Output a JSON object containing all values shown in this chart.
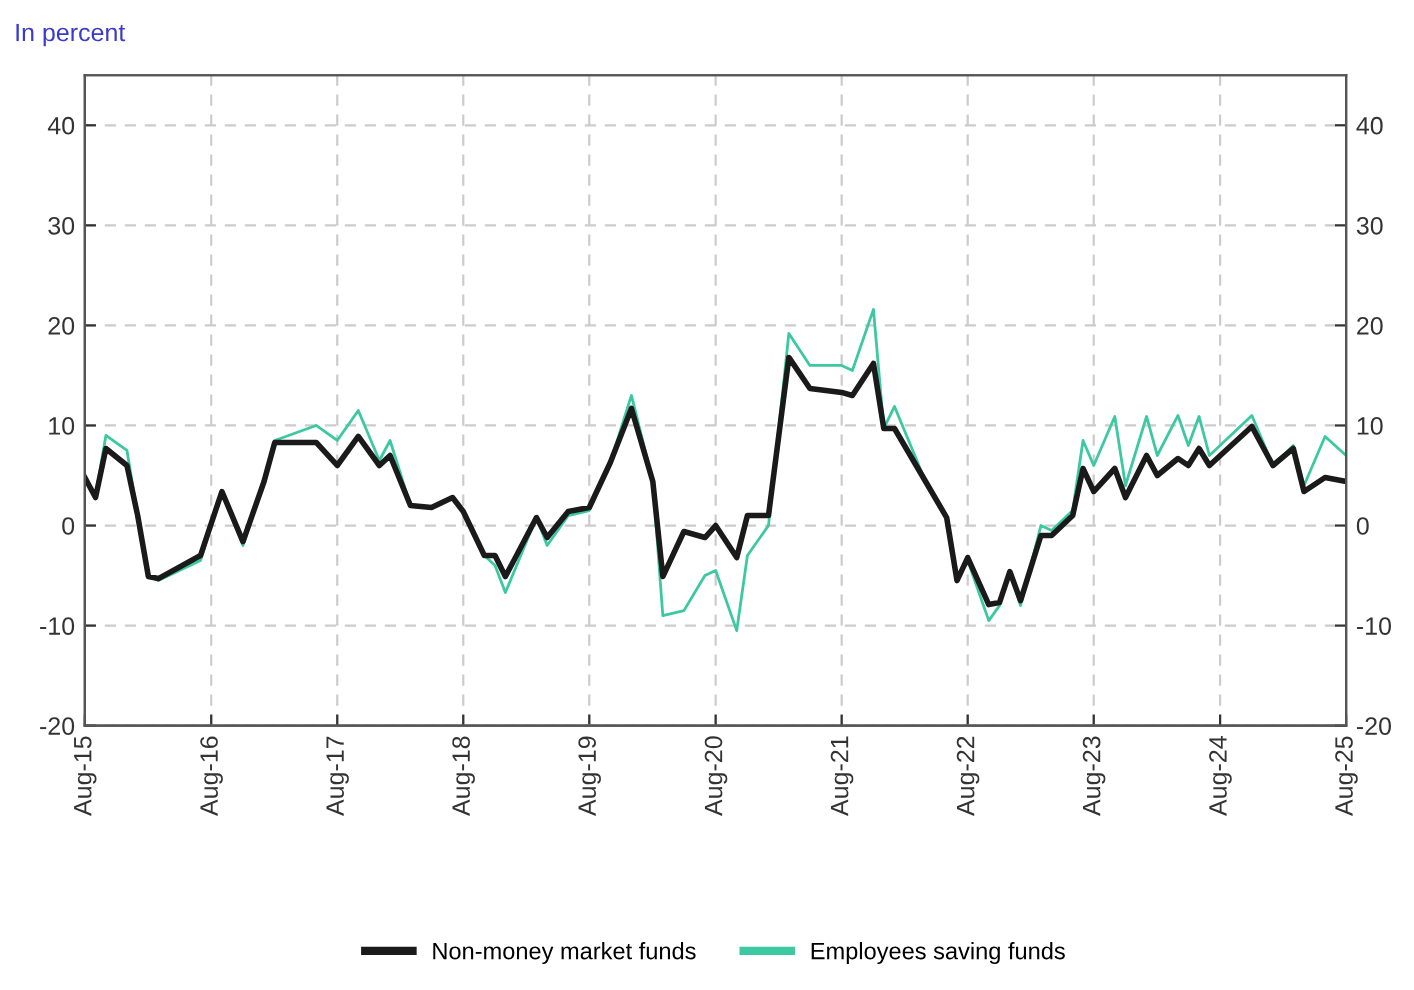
{
  "chart_data": {
    "type": "line",
    "subtitle": "In percent",
    "x": [
      "2015-08",
      "2015-09",
      "2015-10",
      "2015-12",
      "2016-01",
      "2016-02",
      "2016-03",
      "2016-07",
      "2016-09",
      "2016-11",
      "2017-01",
      "2017-02",
      "2017-06",
      "2017-08",
      "2017-10",
      "2017-12",
      "2018-01",
      "2018-03",
      "2018-05",
      "2018-07",
      "2018-08",
      "2018-10",
      "2018-11",
      "2018-12",
      "2019-03",
      "2019-04",
      "2019-06",
      "2019-08",
      "2019-10",
      "2019-12",
      "2020-02",
      "2020-03",
      "2020-05",
      "2020-07",
      "2020-08",
      "2020-10",
      "2020-11",
      "2021-01",
      "2021-03",
      "2021-05",
      "2021-08",
      "2021-09",
      "2021-11",
      "2021-12",
      "2022-01",
      "2022-04",
      "2022-06",
      "2022-07",
      "2022-08",
      "2022-10",
      "2022-11",
      "2022-12",
      "2023-01",
      "2023-03",
      "2023-04",
      "2023-06",
      "2023-07",
      "2023-08",
      "2023-10",
      "2023-11",
      "2024-01",
      "2024-02",
      "2024-04",
      "2024-05",
      "2024-06",
      "2024-07",
      "2024-11",
      "2025-01",
      "2025-03",
      "2025-04",
      "2025-06",
      "2025-08"
    ],
    "series": [
      {
        "name": "Non-money market funds",
        "color": "#1a1a1a",
        "values": [
          4.8,
          2.8,
          7.7,
          6,
          1,
          -5.1,
          -5.3,
          -3,
          3.4,
          -1.6,
          4.4,
          8.3,
          8.3,
          6,
          8.9,
          6,
          7,
          2,
          1.8,
          2.8,
          1.4,
          -3,
          -3,
          -5.1,
          0.8,
          -1.2,
          1.4,
          1.8,
          6.3,
          11.7,
          4.4,
          -5.1,
          -0.6,
          -1.2,
          0,
          -3.2,
          1,
          1,
          16.8,
          13.7,
          13.3,
          13,
          16.2,
          9.7,
          9.7,
          4.4,
          0.8,
          -5.5,
          -3.2,
          -7.9,
          -7.7,
          -4.6,
          -7.5,
          -1,
          -1,
          1,
          5.7,
          3.4,
          5.7,
          2.8,
          7,
          5,
          6.7,
          6,
          7.7,
          6,
          9.9,
          6,
          7.7,
          3.4,
          4.8,
          4.4
        ]
      },
      {
        "name": "Employees saving funds",
        "color": "#3cc8a0",
        "values": [
          4.5,
          3,
          9,
          7.5,
          1,
          -5,
          -5.5,
          -3.5,
          3.4,
          -2,
          4.4,
          8.5,
          10,
          8.5,
          11.5,
          6.5,
          8.5,
          2,
          1.8,
          2.8,
          1.4,
          -3,
          -4,
          -6.7,
          0.8,
          -2,
          1,
          1.5,
          6.3,
          13,
          4.4,
          -9,
          -8.5,
          -5,
          -4.5,
          -10.5,
          -3,
          0,
          19.2,
          16,
          16,
          15.5,
          21.6,
          9.7,
          11.9,
          4.4,
          0.8,
          -5.5,
          -3.5,
          -9.5,
          -8,
          -4.6,
          -8,
          0,
          -0.5,
          1.5,
          8.5,
          6,
          10.9,
          4,
          10.9,
          7,
          11,
          8,
          10.9,
          7,
          11,
          6,
          8,
          4,
          8.9,
          7
        ]
      }
    ],
    "xlim": [
      "2015-08",
      "2025-08"
    ],
    "xticks": [
      {
        "value": "2015-08",
        "label": "Aug-15"
      },
      {
        "value": "2016-08",
        "label": "Aug-16"
      },
      {
        "value": "2017-08",
        "label": "Aug-17"
      },
      {
        "value": "2018-08",
        "label": "Aug-18"
      },
      {
        "value": "2019-08",
        "label": "Aug-19"
      },
      {
        "value": "2020-08",
        "label": "Aug-20"
      },
      {
        "value": "2021-08",
        "label": "Aug-21"
      },
      {
        "value": "2022-08",
        "label": "Aug-22"
      },
      {
        "value": "2023-08",
        "label": "Aug-23"
      },
      {
        "value": "2024-08",
        "label": "Aug-24"
      },
      {
        "value": "2025-08",
        "label": "Aug-25"
      }
    ],
    "ylim": [
      -20,
      45
    ],
    "yticks": [
      -20,
      -10,
      0,
      10,
      20,
      30,
      40
    ],
    "y2lim": [
      -20,
      45
    ],
    "y2ticks": [
      -20,
      -10,
      0,
      10,
      20,
      30,
      40
    ],
    "grid": true,
    "legend": "bottom",
    "marker": "none",
    "line_style": "solid"
  }
}
